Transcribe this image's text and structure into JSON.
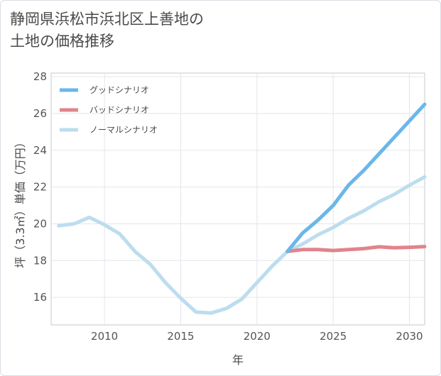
{
  "title": {
    "line1": "静岡県浜松市浜北区上善地の",
    "line2": "土地の価格推移"
  },
  "chart_data": {
    "type": "line",
    "xlabel": "年",
    "ylabel": "坪（3.3㎡）単価（万円）",
    "xlim": [
      2006.5,
      2031
    ],
    "ylim": [
      14.5,
      28.2
    ],
    "xticks": [
      2010,
      2015,
      2020,
      2025,
      2030
    ],
    "yticks": [
      16,
      18,
      20,
      22,
      24,
      26,
      28
    ],
    "grid": true,
    "legend_position": "top-left",
    "series": [
      {
        "name": "グッドシナリオ",
        "color": "#6ab7ea",
        "x": [
          2022,
          2023,
          2024,
          2025,
          2026,
          2027,
          2028,
          2029,
          2030,
          2031
        ],
        "y": [
          18.5,
          19.5,
          20.2,
          21.0,
          22.1,
          22.9,
          23.8,
          24.7,
          25.6,
          26.5
        ]
      },
      {
        "name": "バッドシナリオ",
        "color": "#e0848c",
        "x": [
          2022,
          2023,
          2024,
          2025,
          2026,
          2027,
          2028,
          2029,
          2030,
          2031
        ],
        "y": [
          18.5,
          18.6,
          18.6,
          18.55,
          18.6,
          18.65,
          18.75,
          18.7,
          18.72,
          18.76
        ]
      },
      {
        "name": "ノーマルシナリオ",
        "color": "#bcddee",
        "x": [
          2007,
          2008,
          2009,
          2010,
          2011,
          2012,
          2013,
          2014,
          2015,
          2016,
          2017,
          2018,
          2019,
          2020,
          2021,
          2022,
          2023,
          2024,
          2025,
          2026,
          2027,
          2028,
          2029,
          2030,
          2031
        ],
        "y": [
          19.9,
          20.0,
          20.35,
          19.95,
          19.45,
          18.5,
          17.8,
          16.8,
          15.95,
          15.2,
          15.15,
          15.4,
          15.9,
          16.8,
          17.7,
          18.5,
          18.9,
          19.4,
          19.8,
          20.3,
          20.7,
          21.2,
          21.6,
          22.1,
          22.55
        ]
      }
    ]
  }
}
